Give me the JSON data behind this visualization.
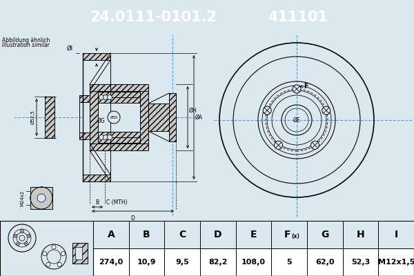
{
  "title_part": "24.0111-0101.2",
  "title_code": "411101",
  "subtitle1": "Abbildung ähnlich",
  "subtitle2": "Illustration similar",
  "header_bg": "#1e6bb0",
  "header_text_color": "#ffffff",
  "bg_color": "#dce8f0",
  "table_bg": "#ffffff",
  "table_header_bg": "#dce8f0",
  "table_headers": [
    "A",
    "B",
    "C",
    "D",
    "E",
    "F(x)",
    "G",
    "H",
    "I"
  ],
  "table_values": [
    "274,0",
    "10,9",
    "9,5",
    "82,2",
    "108,0",
    "5",
    "62,0",
    "52,3",
    "M12x1,5"
  ],
  "label_A": "ØA",
  "label_B": "B",
  "label_C": "C (MTH)",
  "label_D": "D",
  "label_E": "ØE",
  "label_F": "F",
  "label_G": "ØG",
  "label_H": "ØH",
  "label_I": "ØI",
  "label_phi52": "Ø52,5",
  "label_m24": "M24x2",
  "label_phi30": "Ø30",
  "line_color": "#000000",
  "crosshair_color": "#5a9ad5",
  "hatch_fc": "#c8c8c8"
}
